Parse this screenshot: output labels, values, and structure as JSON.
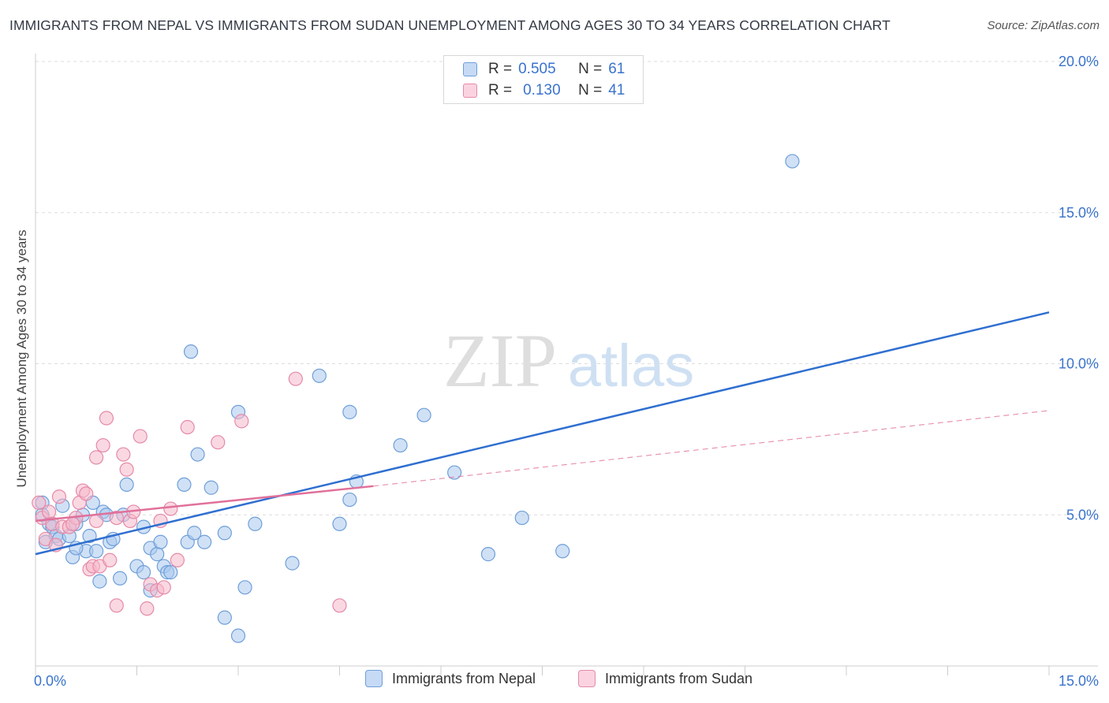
{
  "header": {
    "title": "IMMIGRANTS FROM NEPAL VS IMMIGRANTS FROM SUDAN UNEMPLOYMENT AMONG AGES 30 TO 34 YEARS CORRELATION CHART",
    "source": "Source: ZipAtlas.com"
  },
  "watermark": {
    "zip": "ZIP",
    "atlas": "atlas"
  },
  "legend": {
    "r_label": "R =",
    "n_label": "N =",
    "rows": [
      {
        "r": "0.505",
        "n": "61",
        "color": "#a9c8ef"
      },
      {
        "r": "0.130",
        "n": "41",
        "color": "#f5b8cb"
      }
    ]
  },
  "chart_data": {
    "type": "scatter",
    "title": "IMMIGRANTS FROM NEPAL VS IMMIGRANTS FROM SUDAN UNEMPLOYMENT AMONG AGES 30 TO 34 YEARS CORRELATION CHART",
    "xlabel": "",
    "ylabel": "Unemployment Among Ages 30 to 34 years",
    "xlim": [
      0,
      15
    ],
    "ylim": [
      0,
      20
    ],
    "x_tick_labels": [
      {
        "value": 0,
        "label": "0.0%"
      },
      {
        "value": 15,
        "label": "15.0%"
      }
    ],
    "y_tick_labels": [
      {
        "value": 5,
        "label": "5.0%"
      },
      {
        "value": 10,
        "label": "10.0%"
      },
      {
        "value": 15,
        "label": "15.0%"
      },
      {
        "value": 20,
        "label": "20.0%"
      }
    ],
    "grid": "horizontal dashed",
    "legend_position": "top-center",
    "series": [
      {
        "name": "Immigrants from Nepal",
        "color": "#a9c8ef",
        "stroke": "#6f9fd8",
        "trend_color": "#2f6fd0",
        "trend": {
          "x": [
            0,
            15
          ],
          "y": [
            3.7,
            11.7
          ],
          "style": "solid"
        },
        "points": [
          [
            0.1,
            5.4
          ],
          [
            0.1,
            5.0
          ],
          [
            0.2,
            4.7
          ],
          [
            0.25,
            4.6
          ],
          [
            0.3,
            4.3
          ],
          [
            0.35,
            4.2
          ],
          [
            0.4,
            5.3
          ],
          [
            0.5,
            4.3
          ],
          [
            0.55,
            3.6
          ],
          [
            0.6,
            4.7
          ],
          [
            0.7,
            5.0
          ],
          [
            0.75,
            3.8
          ],
          [
            0.8,
            4.3
          ],
          [
            0.85,
            5.4
          ],
          [
            0.9,
            3.8
          ],
          [
            0.95,
            2.8
          ],
          [
            1.0,
            5.1
          ],
          [
            1.05,
            5.0
          ],
          [
            1.1,
            4.1
          ],
          [
            1.15,
            4.2
          ],
          [
            1.25,
            2.9
          ],
          [
            1.3,
            5.0
          ],
          [
            1.35,
            6.0
          ],
          [
            1.5,
            3.3
          ],
          [
            1.6,
            3.1
          ],
          [
            1.6,
            4.6
          ],
          [
            1.7,
            3.9
          ],
          [
            1.7,
            2.5
          ],
          [
            1.8,
            3.7
          ],
          [
            1.85,
            4.1
          ],
          [
            1.9,
            3.3
          ],
          [
            1.95,
            3.1
          ],
          [
            2.0,
            3.1
          ],
          [
            2.2,
            6.0
          ],
          [
            2.25,
            4.1
          ],
          [
            2.3,
            10.4
          ],
          [
            2.35,
            4.4
          ],
          [
            2.4,
            7.0
          ],
          [
            2.5,
            4.1
          ],
          [
            2.6,
            5.9
          ],
          [
            2.8,
            4.4
          ],
          [
            2.8,
            1.6
          ],
          [
            3.0,
            1.0
          ],
          [
            3.0,
            8.4
          ],
          [
            3.1,
            2.6
          ],
          [
            3.25,
            4.7
          ],
          [
            3.8,
            3.4
          ],
          [
            4.2,
            9.6
          ],
          [
            4.5,
            4.7
          ],
          [
            4.65,
            5.5
          ],
          [
            4.65,
            8.4
          ],
          [
            4.75,
            6.1
          ],
          [
            5.4,
            7.3
          ],
          [
            5.75,
            8.3
          ],
          [
            6.2,
            6.4
          ],
          [
            6.7,
            3.7
          ],
          [
            7.2,
            4.9
          ],
          [
            7.8,
            3.8
          ],
          [
            11.2,
            16.7
          ],
          [
            0.15,
            4.1
          ],
          [
            0.6,
            3.9
          ]
        ]
      },
      {
        "name": "Immigrants from Sudan",
        "color": "#f5b8cb",
        "stroke": "#e58aa8",
        "trend_color": "#e0709a",
        "trend": {
          "x": [
            0,
            5
          ],
          "y": [
            4.8,
            5.95
          ],
          "style": "solid"
        },
        "trend_extension": {
          "x": [
            5,
            15
          ],
          "y": [
            5.95,
            8.45
          ],
          "style": "dashed"
        },
        "points": [
          [
            0.05,
            5.4
          ],
          [
            0.1,
            4.9
          ],
          [
            0.15,
            4.2
          ],
          [
            0.2,
            5.1
          ],
          [
            0.25,
            4.7
          ],
          [
            0.3,
            4.0
          ],
          [
            0.35,
            5.6
          ],
          [
            0.4,
            4.6
          ],
          [
            0.5,
            4.6
          ],
          [
            0.6,
            4.9
          ],
          [
            0.65,
            5.4
          ],
          [
            0.7,
            5.8
          ],
          [
            0.75,
            5.7
          ],
          [
            0.8,
            3.2
          ],
          [
            0.85,
            3.3
          ],
          [
            0.9,
            4.8
          ],
          [
            0.9,
            6.9
          ],
          [
            0.95,
            3.3
          ],
          [
            1.0,
            7.3
          ],
          [
            1.05,
            8.2
          ],
          [
            1.1,
            3.5
          ],
          [
            1.2,
            2.0
          ],
          [
            1.3,
            7.0
          ],
          [
            1.35,
            6.5
          ],
          [
            1.4,
            4.8
          ],
          [
            1.45,
            5.1
          ],
          [
            1.55,
            7.6
          ],
          [
            1.65,
            1.9
          ],
          [
            1.7,
            2.7
          ],
          [
            1.8,
            2.5
          ],
          [
            1.85,
            4.8
          ],
          [
            1.9,
            2.6
          ],
          [
            2.0,
            5.2
          ],
          [
            2.1,
            3.5
          ],
          [
            2.25,
            7.9
          ],
          [
            2.7,
            7.4
          ],
          [
            3.05,
            8.1
          ],
          [
            3.85,
            9.5
          ],
          [
            4.5,
            2.0
          ],
          [
            1.2,
            4.9
          ],
          [
            0.55,
            4.7
          ]
        ]
      }
    ]
  },
  "bottom_legend": {
    "items": [
      {
        "label": "Immigrants from Nepal",
        "color": "#a9c8ef"
      },
      {
        "label": "Immigrants from Sudan",
        "color": "#f5b8cb"
      }
    ]
  }
}
